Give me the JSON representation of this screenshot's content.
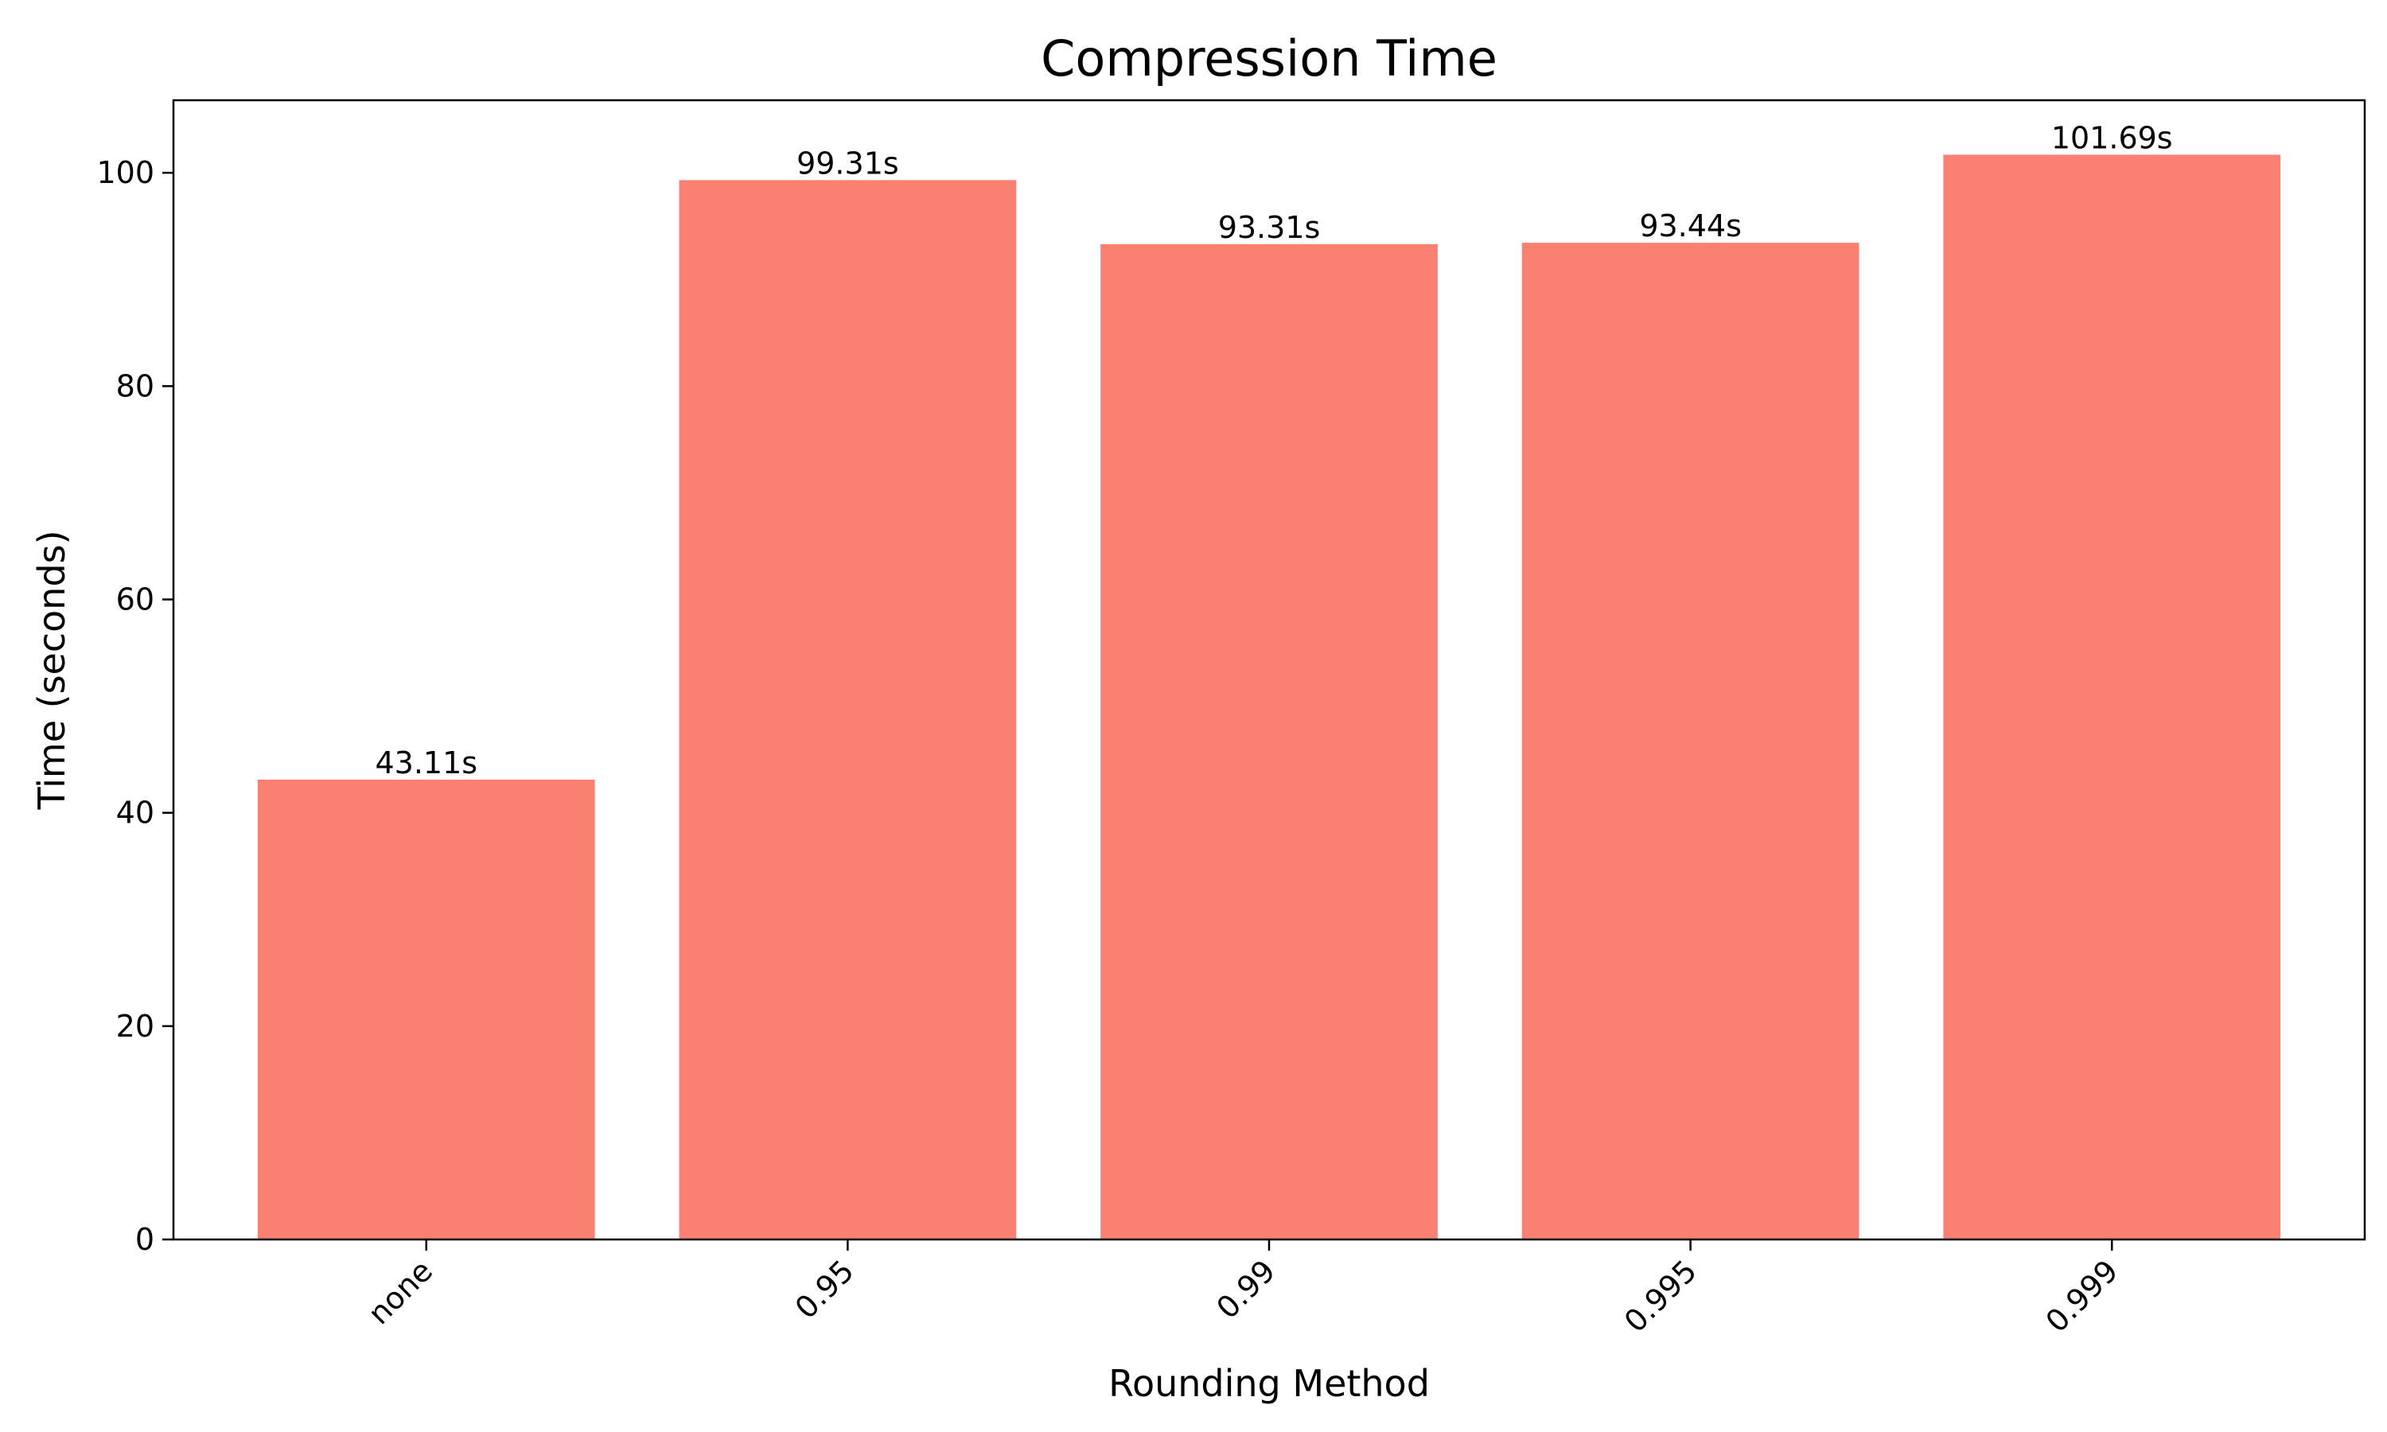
{
  "chart_data": {
    "type": "bar",
    "title": "Compression Time",
    "xlabel": "Rounding Method",
    "ylabel": "Time (seconds)",
    "categories": [
      "none",
      "0.95",
      "0.99",
      "0.995",
      "0.999"
    ],
    "values": [
      43.11,
      99.31,
      93.31,
      93.44,
      101.69
    ],
    "value_labels": [
      "43.11s",
      "99.31s",
      "93.31s",
      "93.44s",
      "101.69s"
    ],
    "yticks": [
      0,
      20,
      40,
      60,
      80,
      100
    ],
    "ylim": [
      0,
      106.8
    ],
    "grid": false,
    "legend": "none",
    "bar_color": "#fa8072",
    "xtick_rotation": 45
  }
}
